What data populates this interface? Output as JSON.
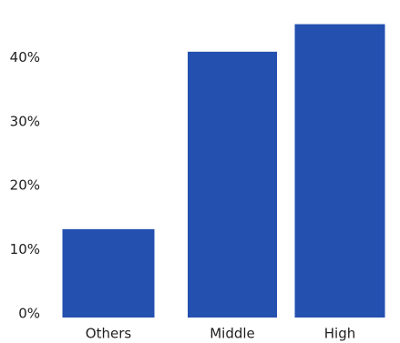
{
  "chart_data": {
    "type": "bar",
    "categories": [
      "Others",
      "Middle",
      "High"
    ],
    "values": [
      13.8,
      41.5,
      45.8
    ],
    "ylim": [
      0,
      48
    ],
    "y_ticks": [
      0,
      10,
      20,
      30,
      40
    ],
    "y_tick_labels": [
      "0%",
      "10%",
      "20%",
      "30%",
      "40%"
    ],
    "grid": false,
    "legend": "none",
    "bar_color": "#2450b0",
    "title": "",
    "xlabel": "",
    "ylabel": ""
  }
}
